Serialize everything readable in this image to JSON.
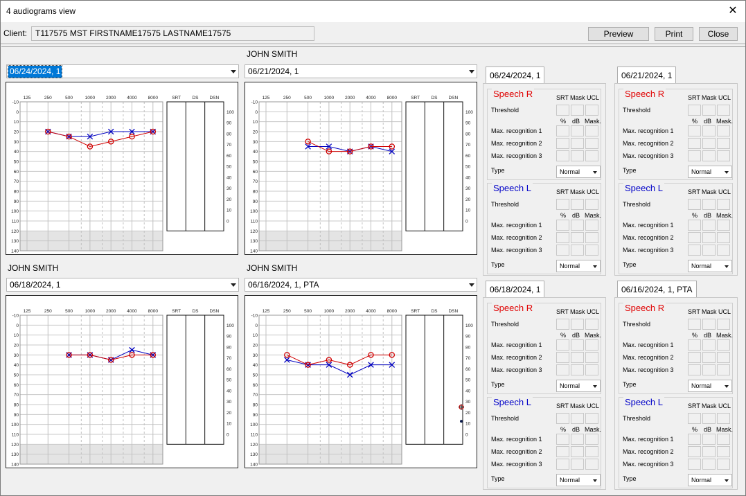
{
  "window": {
    "title": "4 audiograms view",
    "close_glyph": "✕"
  },
  "client": {
    "label": "Client:",
    "value": "T117575  MST FIRSTNAME17575 LASTNAME17575"
  },
  "buttons": {
    "preview": "Preview",
    "print": "Print",
    "close": "Close"
  },
  "chart_labels": {
    "freqs": [
      "125",
      "250",
      "500",
      "1000",
      "2000",
      "4000",
      "8000"
    ],
    "db": [
      "-10",
      "0",
      "10",
      "20",
      "30",
      "40",
      "50",
      "60",
      "70",
      "80",
      "90",
      "100",
      "110",
      "120",
      "130",
      "140"
    ],
    "speech_cols": [
      "SRT",
      "DS",
      "DSN"
    ],
    "percent": [
      "100",
      "90",
      "80",
      "70",
      "60",
      "50",
      "40",
      "30",
      "20",
      "10",
      "0"
    ]
  },
  "audiograms": [
    {
      "patient": "",
      "date": "06/24/2024, 1",
      "selected": true
    },
    {
      "patient": "JOHN SMITH",
      "date": "06/21/2024, 1",
      "selected": false
    },
    {
      "patient": "JOHN SMITH",
      "date": "06/18/2024, 1",
      "selected": false
    },
    {
      "patient": "JOHN SMITH",
      "date": "06/16/2024, 1, PTA",
      "selected": false
    }
  ],
  "chart_data": [
    {
      "type": "line",
      "freq_hz": [
        250,
        500,
        1000,
        2000,
        4000,
        8000
      ],
      "ylim": [
        -10,
        140
      ],
      "series": [
        {
          "values": [
            20,
            25,
            35,
            30,
            25,
            20
          ],
          "color": "#d00000",
          "marker": "circle"
        },
        {
          "values": [
            20,
            25,
            25,
            20,
            20,
            20
          ],
          "color": "#0000c0",
          "marker": "x"
        }
      ],
      "speech_points": []
    },
    {
      "type": "line",
      "freq_hz": [
        500,
        1000,
        2000,
        4000,
        8000
      ],
      "ylim": [
        -10,
        140
      ],
      "series": [
        {
          "values": [
            30,
            40,
            40,
            35,
            35
          ],
          "color": "#d00000",
          "marker": "circle"
        },
        {
          "values": [
            35,
            35,
            40,
            35,
            40
          ],
          "color": "#0000c0",
          "marker": "x"
        }
      ],
      "speech_points": []
    },
    {
      "type": "line",
      "freq_hz": [
        500,
        1000,
        2000,
        4000,
        8000
      ],
      "ylim": [
        -10,
        140
      ],
      "series": [
        {
          "values": [
            30,
            30,
            35,
            30,
            30
          ],
          "color": "#d00000",
          "marker": "circle"
        },
        {
          "values": [
            30,
            30,
            35,
            25,
            30
          ],
          "color": "#0000c0",
          "marker": "x"
        }
      ],
      "speech_points": []
    },
    {
      "type": "line",
      "freq_hz": [
        250,
        500,
        1000,
        2000,
        4000,
        8000
      ],
      "ylim": [
        -10,
        140
      ],
      "series": [
        {
          "values": [
            30,
            40,
            35,
            40,
            30,
            30
          ],
          "color": "#d00000",
          "marker": "circle"
        },
        {
          "values": [
            35,
            40,
            40,
            50,
            40,
            40
          ],
          "color": "#0000c0",
          "marker": "x"
        }
      ],
      "speech_points": [
        {
          "percent": 25,
          "color": "#d00000",
          "marker": "plus"
        },
        {
          "percent": 12,
          "color": "#0a1a4a",
          "marker": "dot"
        }
      ]
    }
  ],
  "speech_panels": [
    {
      "tab": "06/24/2024, 1"
    },
    {
      "tab": "06/21/2024, 1"
    },
    {
      "tab": "06/18/2024, 1"
    },
    {
      "tab": "06/16/2024, 1, PTA"
    }
  ],
  "speech_labels": {
    "right": "Speech R",
    "left": "Speech L",
    "srt": "SRT",
    "mask": "Mask",
    "ucl": "UCL",
    "threshold": "Threshold",
    "pct": "%",
    "db": "dB",
    "mask2": "Mask.",
    "rec": [
      "Max. recognition  1",
      "Max. recognition  2",
      "Max. recognition  3"
    ],
    "type": "Type",
    "type_value": "Normal"
  },
  "colors": {
    "right_ear": "#d00000",
    "left_ear": "#0000c0",
    "selection": "#0078d7"
  }
}
